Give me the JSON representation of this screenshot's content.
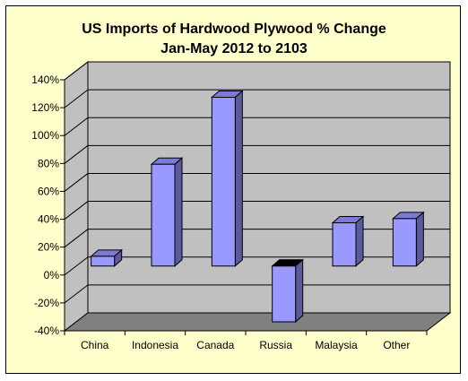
{
  "chart_data": {
    "type": "bar",
    "title": "US Imports of Hardwood Plywood % Change",
    "subtitle": "Jan-May 2012 to 2103",
    "categories": [
      "China",
      "Indonesia",
      "Canada",
      "Russia",
      "Malaysia",
      "Other"
    ],
    "values": [
      7,
      73,
      121,
      -40,
      31,
      34
    ],
    "ytick_labels": [
      "140%",
      "120%",
      "100%",
      "80%",
      "60%",
      "40%",
      "20%",
      "0%",
      "-20%",
      "-40%"
    ],
    "ylim": [
      -40,
      140
    ],
    "ystep": 20,
    "grid": true,
    "legend": "none",
    "style": "3d-column",
    "colors": {
      "background": "#ffffcc",
      "plot_wall": "#c0c0c0",
      "floor": "#808080",
      "bar_front": "#9999ff",
      "bar_side": "#5a5a9c",
      "bar_top": "#7b7bd6",
      "gridline": "#000000"
    }
  }
}
